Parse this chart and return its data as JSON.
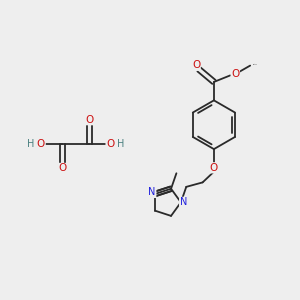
{
  "bg_color": "#eeeeee",
  "bond_color": "#2a2a2a",
  "N_color": "#2020dd",
  "O_color": "#cc1111",
  "H_color": "#4a8080",
  "figsize": [
    3.0,
    3.0
  ],
  "dpi": 100,
  "xlim": [
    0,
    10
  ],
  "ylim": [
    0,
    10
  ]
}
